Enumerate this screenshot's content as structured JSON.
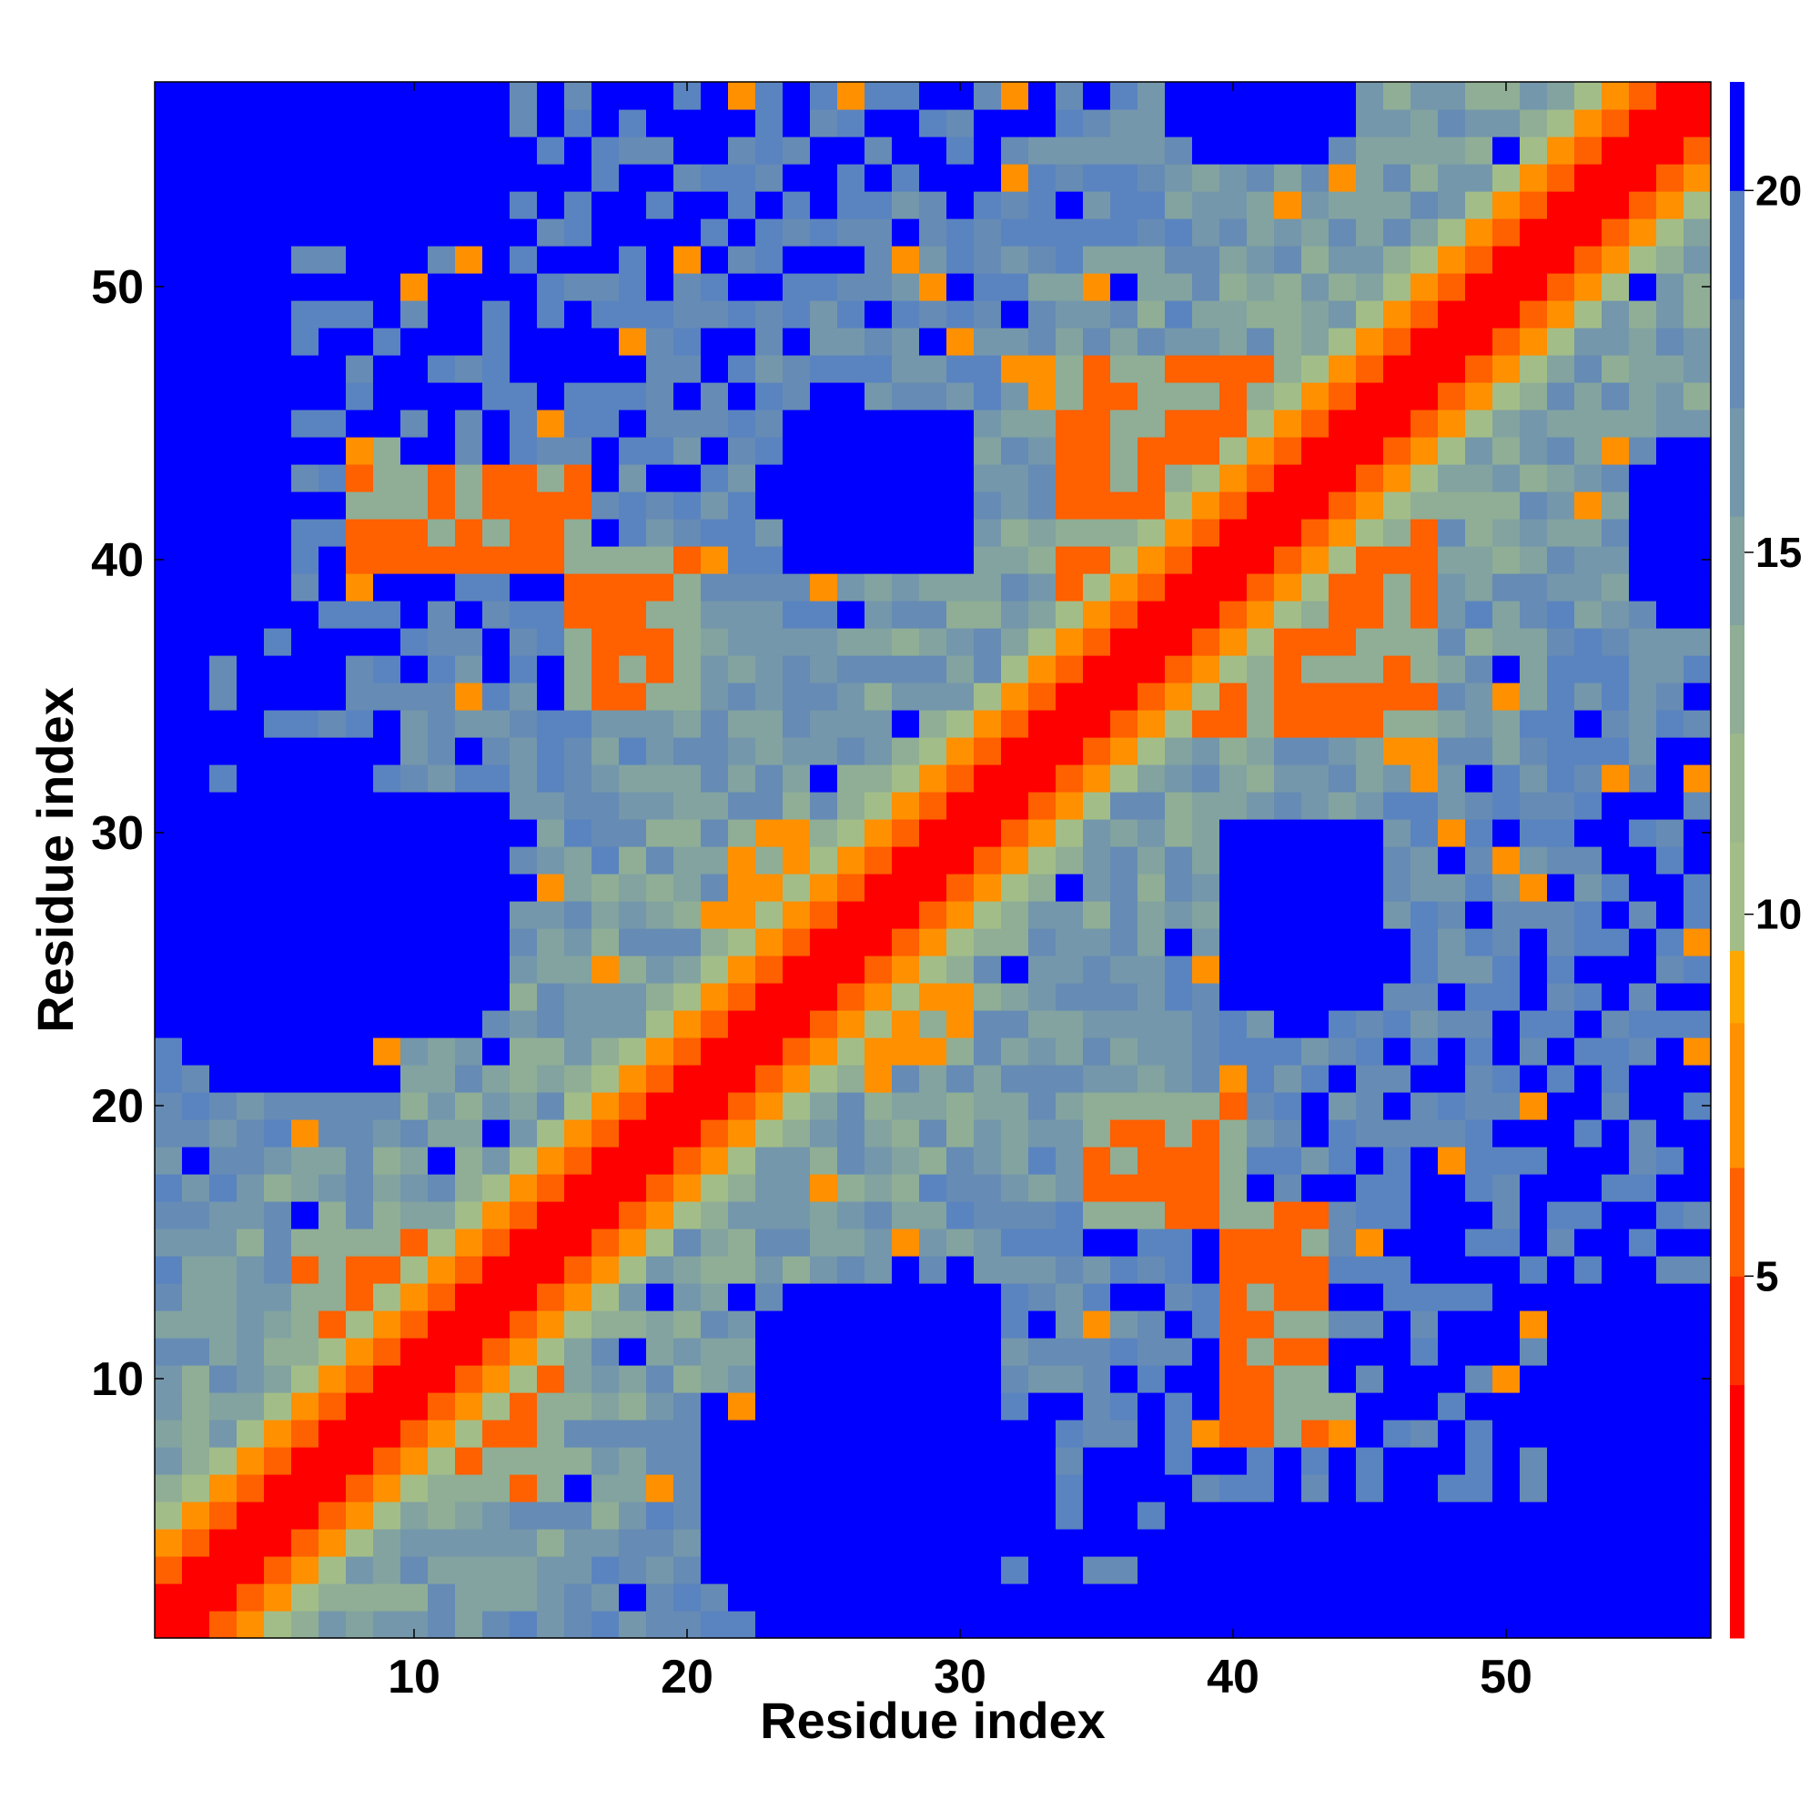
{
  "chart_data": {
    "type": "heatmap",
    "title": "",
    "xlabel": "Residue index",
    "ylabel": "Residue index",
    "n_residues": 57,
    "xlim": [
      0.5,
      57.5
    ],
    "ylim": [
      0.5,
      57.5
    ],
    "x_ticks": [
      10,
      20,
      30,
      40,
      50
    ],
    "y_ticks": [
      10,
      20,
      30,
      40,
      50
    ],
    "colorbar": {
      "range": [
        0,
        21.5
      ],
      "ticks": [
        5,
        10,
        15,
        20
      ],
      "levels": [
        {
          "min": 0,
          "max": 3.5,
          "color": "#ff0000"
        },
        {
          "min": 3.5,
          "max": 5,
          "color": "#ff3000"
        },
        {
          "min": 5,
          "max": 6.5,
          "color": "#ff6000"
        },
        {
          "min": 6.5,
          "max": 8.5,
          "color": "#ff9000"
        },
        {
          "min": 8.5,
          "max": 9.5,
          "color": "#fda800"
        },
        {
          "min": 9.5,
          "max": 11,
          "color": "#a3bd88"
        },
        {
          "min": 11,
          "max": 12.5,
          "color": "#9cb88a"
        },
        {
          "min": 12.5,
          "max": 14,
          "color": "#8fae95"
        },
        {
          "min": 14,
          "max": 15.5,
          "color": "#82a3a0"
        },
        {
          "min": 15.5,
          "max": 17,
          "color": "#7497ab"
        },
        {
          "min": 17,
          "max": 18.5,
          "color": "#668bb5"
        },
        {
          "min": 18.5,
          "max": 20,
          "color": "#5a84c0"
        },
        {
          "min": 20,
          "max": 21.5,
          "color": "#0000ff"
        }
      ]
    },
    "diagonal_band": [
      {
        "max_offset": 1,
        "value": 1
      },
      {
        "max_offset": 2,
        "value": 5.2
      },
      {
        "max_offset": 3,
        "value": 7.5
      },
      {
        "max_offset": 4,
        "value": 10.2
      }
    ],
    "contact_clusters": [
      {
        "x": [
          6,
          14
        ],
        "y": [
          9,
          15
        ],
        "value": 6.2
      },
      {
        "x": [
          22,
          29
        ],
        "y": [
          23,
          30
        ],
        "value": 7.8
      },
      {
        "x": [
          34,
          45
        ],
        "y": [
          37,
          47
        ],
        "value": 6.2
      },
      {
        "x": [
          46,
          47
        ],
        "y": [
          33,
          43
        ],
        "value": 7.8
      },
      {
        "x": [
          16,
          20
        ],
        "y": [
          35,
          40
        ],
        "value": 6.2
      },
      {
        "x": [
          8,
          16
        ],
        "y": [
          40,
          43
        ],
        "value": 6.2
      },
      {
        "x": [
          8,
          9
        ],
        "y": [
          40,
          44
        ],
        "value": 7.8
      }
    ],
    "far_regions": [
      {
        "x": [
          1,
          11
        ],
        "y": [
          23,
          30
        ],
        "value": 21
      },
      {
        "x": [
          3,
          8
        ],
        "y": [
          21,
          23
        ],
        "value": 21
      },
      {
        "x": [
          1,
          13
        ],
        "y": [
          30,
          31
        ],
        "value": 21
      },
      {
        "x": [
          1,
          5
        ],
        "y": [
          38,
          57
        ],
        "value": 21
      },
      {
        "x": [
          1,
          2
        ],
        "y": [
          31,
          37
        ],
        "value": 21
      },
      {
        "x": [
          6,
          13
        ],
        "y": [
          52,
          57
        ],
        "value": 21
      },
      {
        "x": [
          1,
          13
        ],
        "y": [
          56,
          57
        ],
        "value": 21
      },
      {
        "x": [
          23,
          30
        ],
        "y": [
          1,
          12
        ],
        "value": 21
      },
      {
        "x": [
          21,
          33
        ],
        "y": [
          4,
          8
        ],
        "value": 21
      },
      {
        "x": [
          24,
          29
        ],
        "y": [
          10,
          13
        ],
        "value": 21
      },
      {
        "x": [
          37,
          57
        ],
        "y": [
          1,
          3
        ],
        "value": 21
      },
      {
        "x": [
          52,
          57
        ],
        "y": [
          3,
          11
        ],
        "value": 21
      },
      {
        "x": [
          40,
          44
        ],
        "y": [
          24,
          30
        ],
        "value": 21
      },
      {
        "x": [
          24,
          30
        ],
        "y": [
          40,
          45
        ],
        "value": 21
      },
      {
        "x": [
          39,
          43
        ],
        "y": [
          55,
          57
        ],
        "value": 21
      },
      {
        "x": [
          56,
          57
        ],
        "y": [
          41,
          44
        ],
        "value": 21
      }
    ]
  }
}
